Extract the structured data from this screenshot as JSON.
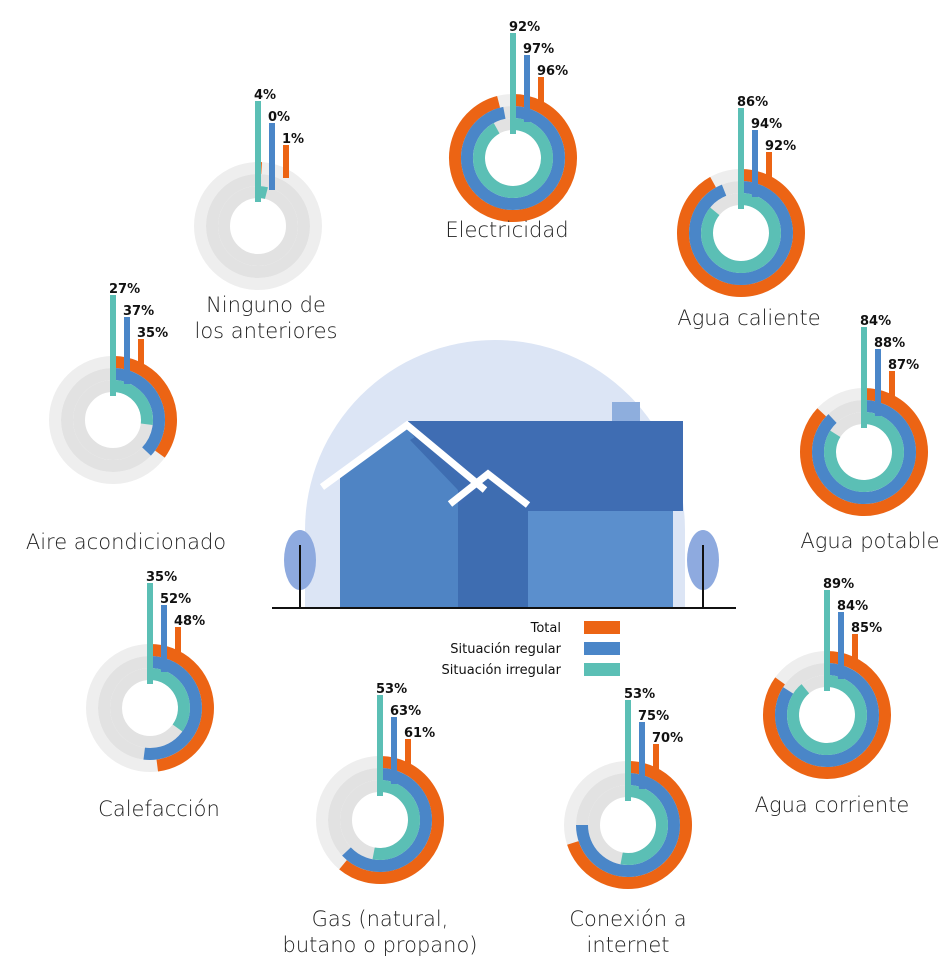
{
  "chart_data": {
    "type": "radial-bar",
    "title": "",
    "series": [
      {
        "name": "Total",
        "color": "#EC6414"
      },
      {
        "name": "Situación regular",
        "color": "#4A86C8"
      },
      {
        "name": "Situación irregular",
        "color": "#5BBFB5"
      }
    ],
    "categories": [
      {
        "label": [
          "Electricidad"
        ],
        "irregular": "92%",
        "regular": "97%",
        "total": "96%"
      },
      {
        "label": [
          "Agua caliente"
        ],
        "irregular": "86%",
        "regular": "94%",
        "total": "92%"
      },
      {
        "label": [
          "Agua potable"
        ],
        "irregular": "84%",
        "regular": "88%",
        "total": "87%"
      },
      {
        "label": [
          "Agua corriente"
        ],
        "irregular": "89%",
        "regular": "84%",
        "total": "85%"
      },
      {
        "label": [
          "Conexión a",
          "internet"
        ],
        "irregular": "53%",
        "regular": "75%",
        "total": "70%"
      },
      {
        "label": [
          "Gas (natural,",
          "butano o propano)"
        ],
        "irregular": "53%",
        "regular": "63%",
        "total": "61%"
      },
      {
        "label": [
          "Calefacción"
        ],
        "irregular": "35%",
        "regular": "52%",
        "total": "48%"
      },
      {
        "label": [
          "Aire acondicionado"
        ],
        "irregular": "27%",
        "regular": "37%",
        "total": "35%"
      },
      {
        "label": [
          "Ninguno de",
          "los anteriores"
        ],
        "irregular": "4%",
        "regular": "0%",
        "total": "1%"
      }
    ],
    "legend_position": "center"
  }
}
